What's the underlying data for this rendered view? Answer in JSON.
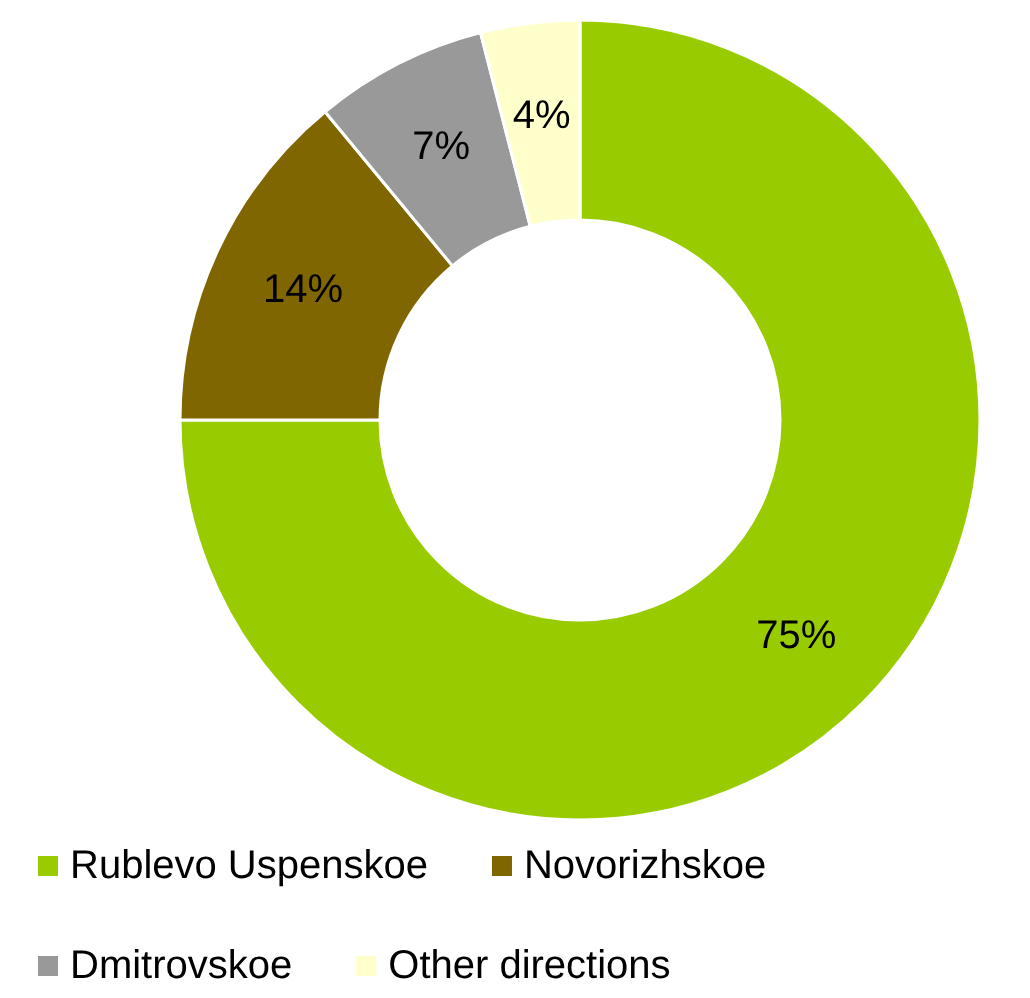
{
  "chart_data": {
    "type": "donut",
    "categories": [
      "Rublevo Uspenskoe",
      "Novorizhskoe",
      "Dmitrovskoe",
      "Other directions"
    ],
    "values": [
      75,
      14,
      7,
      4
    ],
    "colors": [
      "#99cc00",
      "#806600",
      "#999999",
      "#ffffcc"
    ],
    "value_labels": [
      "75%",
      "14%",
      "7%",
      "4%"
    ],
    "legend": "bottom"
  }
}
